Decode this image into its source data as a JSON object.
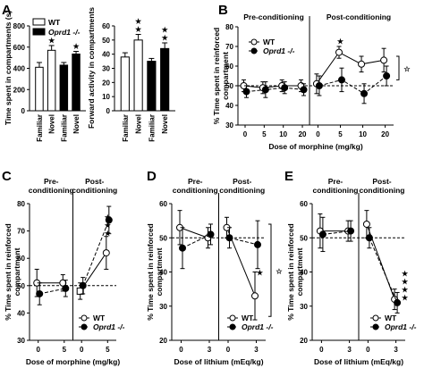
{
  "chart_data": [
    {
      "panel": "A",
      "type": "bar",
      "ylabel": "Time spent in compartments (s)",
      "ylim": [
        0,
        800
      ],
      "yticks": [
        0,
        200,
        400,
        600,
        800
      ],
      "categories": [
        "Familiar",
        "Novel",
        "Familiar",
        "Novel"
      ],
      "groups": [
        "WT",
        "WT",
        "Oprd1 -/-",
        "Oprd1 -/-"
      ],
      "values": [
        410,
        570,
        430,
        535
      ],
      "errors": [
        45,
        45,
        25,
        25
      ],
      "stars": [
        "",
        "★",
        "",
        "★"
      ],
      "legend": [
        {
          "label": "WT",
          "style": "open"
        },
        {
          "label": "Oprd1 -/-",
          "style": "filled"
        }
      ]
    },
    {
      "panel": "A",
      "type": "bar",
      "ylabel": "Forward activity in compartments",
      "ylim": [
        0,
        60
      ],
      "yticks": [
        0,
        10,
        20,
        30,
        40,
        50,
        60
      ],
      "categories": [
        "Familiar",
        "Novel",
        "Familiar",
        "Novel"
      ],
      "groups": [
        "WT",
        "WT",
        "Oprd1 -/-",
        "Oprd1 -/-"
      ],
      "values": [
        38,
        50,
        35,
        44
      ],
      "errors": [
        3,
        4,
        2,
        4
      ],
      "stars": [
        "",
        "★\n★",
        "",
        "★\n★"
      ]
    },
    {
      "panel": "B",
      "type": "line",
      "ylabel": "% Time spent in reinforced compartment",
      "xlabel": "Dose of morphine (mg/kg)",
      "ylim": [
        30,
        80
      ],
      "yticks": [
        30,
        40,
        50,
        60,
        70,
        80
      ],
      "phases": [
        "Pre-conditioning",
        "Post-conditioning"
      ],
      "segments": [
        {
          "phase": "Pre-conditioning",
          "x": [
            "0",
            "5",
            "10",
            "20"
          ]
        },
        {
          "phase": "Post-conditioning",
          "x": [
            "0",
            "5",
            "10",
            "20"
          ]
        }
      ],
      "series": [
        {
          "name": "WT",
          "style": "open",
          "values": [
            [
              50,
              49,
              50,
              50
            ],
            [
              51,
              67,
              61,
              63
            ]
          ],
          "errors": [
            [
              3,
              3,
              3,
              3
            ],
            [
              5,
              3,
              4,
              6
            ]
          ]
        },
        {
          "name": "Oprd1 -/-",
          "style": "filled",
          "values": [
            [
              47,
              48,
              49,
              48
            ],
            [
              50,
              53,
              46,
              55
            ]
          ],
          "errors": [
            [
              3,
              4,
              3,
              3
            ],
            [
              5,
              6,
              5,
              5
            ]
          ]
        }
      ],
      "reference_line": 50,
      "stars": [
        {
          "segment": 1,
          "x_index": 1,
          "text": "★"
        }
      ],
      "bracket_star": "☆"
    },
    {
      "panel": "C",
      "type": "line",
      "ylabel": "% Time spent in reinforced compartment",
      "xlabel": "Dose of morphine (mg/kg)",
      "ylim": [
        30,
        80
      ],
      "yticks": [
        30,
        40,
        50,
        60,
        70,
        80
      ],
      "phases": [
        "Pre-conditioning",
        "Post-conditioning"
      ],
      "segments": [
        {
          "phase": "Pre-conditioning",
          "x": [
            "0",
            "5"
          ]
        },
        {
          "phase": "Post-conditioning",
          "x": [
            "0",
            "5"
          ]
        }
      ],
      "series": [
        {
          "name": "WT",
          "style": "open",
          "values": [
            [
              51,
              51
            ],
            [
              48,
              62
            ]
          ],
          "errors": [
            [
              5,
              3
            ],
            [
              3,
              6
            ]
          ]
        },
        {
          "name": "Oprd1 -/-",
          "style": "filled",
          "values": [
            [
              47,
              49
            ],
            [
              50,
              74
            ]
          ],
          "errors": [
            [
              4,
              3
            ],
            [
              3,
              5
            ]
          ]
        }
      ],
      "reference_line": 50,
      "stars": [
        {
          "segment": 1,
          "x_index": 1,
          "text": "★\n★\n★"
        }
      ]
    },
    {
      "panel": "D",
      "type": "line",
      "ylabel": "% Time spent in reinforced compartment",
      "xlabel": "Dose of lithium (mEq/kg)",
      "ylim": [
        20,
        60
      ],
      "yticks": [
        20,
        30,
        40,
        50,
        60
      ],
      "phases": [
        "Pre-conditioning",
        "Post-conditioning"
      ],
      "segments": [
        {
          "phase": "Pre-conditioning",
          "x": [
            "0",
            "3"
          ]
        },
        {
          "phase": "Post-conditioning",
          "x": [
            "0",
            "3"
          ]
        }
      ],
      "series": [
        {
          "name": "WT",
          "style": "open",
          "values": [
            [
              53,
              50
            ],
            [
              53,
              33
            ]
          ],
          "errors": [
            [
              5,
              3
            ],
            [
              3,
              7
            ]
          ]
        },
        {
          "name": "Oprd1 -/-",
          "style": "filled",
          "values": [
            [
              47,
              51
            ],
            [
              50,
              48
            ]
          ],
          "errors": [
            [
              6,
              3
            ],
            [
              3,
              7
            ]
          ]
        }
      ],
      "reference_line": 50,
      "stars": [
        {
          "segment": 1,
          "x_index": 1,
          "text": "★"
        }
      ],
      "bracket_star": "☆"
    },
    {
      "panel": "E",
      "type": "line",
      "ylabel": "% Time spent in reinforced compartment",
      "xlabel": "Dose of lithium (mEq/kg)",
      "ylim": [
        20,
        60
      ],
      "yticks": [
        20,
        30,
        40,
        50,
        60
      ],
      "phases": [
        "Pre-conditioning",
        "Post-conditioning"
      ],
      "segments": [
        {
          "phase": "Pre-conditioning",
          "x": [
            "0",
            "3"
          ]
        },
        {
          "phase": "Post-conditioning",
          "x": [
            "0",
            "3"
          ]
        }
      ],
      "series": [
        {
          "name": "WT",
          "style": "open",
          "values": [
            [
              52,
              52
            ],
            [
              54,
              32
            ]
          ],
          "errors": [
            [
              5,
              3
            ],
            [
              4,
              3
            ]
          ]
        },
        {
          "name": "Oprd1 -/-",
          "style": "filled",
          "values": [
            [
              51,
              52
            ],
            [
              50,
              31
            ]
          ],
          "errors": [
            [
              5,
              3
            ],
            [
              3,
              3
            ]
          ]
        }
      ],
      "reference_line": 50,
      "stars": [
        {
          "segment": 1,
          "x_index": 1,
          "text": "★\n★\n★\n★"
        }
      ]
    }
  ],
  "colors": {
    "ink": "#000000",
    "open_fill": "#ffffff",
    "filled": "#000000"
  }
}
